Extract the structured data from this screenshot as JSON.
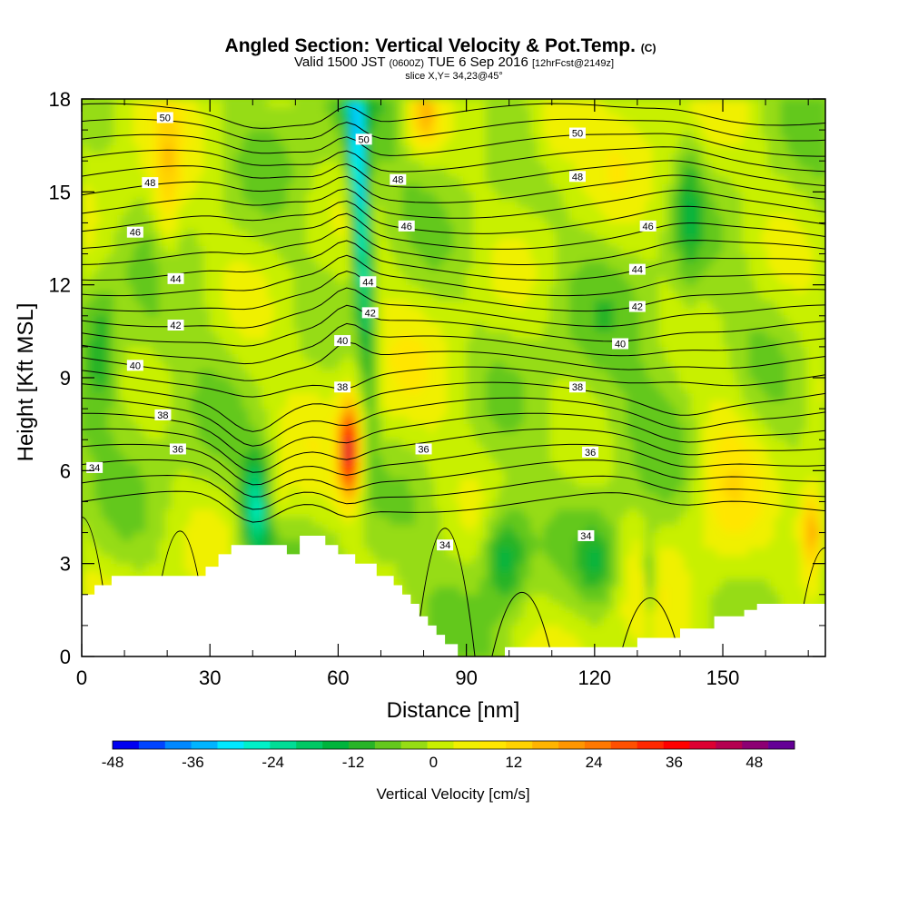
{
  "title": {
    "main": "Angled Section: Vertical Velocity & Pot.Temp.",
    "main_unit": "(C)",
    "valid_prefix": "Valid 1500 JST",
    "valid_zulu": "(0600Z)",
    "valid_date": "TUE 6 Sep 2016",
    "valid_fcst": "[12hrFcst@2149z]",
    "slice": "slice X,Y= 34,23@45°"
  },
  "chart_data": {
    "type": "heatmap",
    "xlabel": "Distance [nm]",
    "ylabel": "Height [Kft MSL]",
    "xlim": [
      0,
      174
    ],
    "ylim": [
      0,
      18
    ],
    "x_ticks": [
      "0",
      "30",
      "60",
      "90",
      "120",
      "150"
    ],
    "y_ticks": [
      "0",
      "3",
      "6",
      "9",
      "12",
      "15",
      "18"
    ],
    "colorbar": {
      "label": "Vertical Velocity [cm/s]",
      "min": -48,
      "max": 54,
      "step": 4,
      "tick_labels": [
        "-48",
        "-36",
        "-24",
        "-12",
        "0",
        "12",
        "24",
        "36",
        "48"
      ],
      "colors": [
        "#0000f0",
        "#0044ff",
        "#0088ff",
        "#00b4ff",
        "#00e8ff",
        "#00f0c8",
        "#00dc96",
        "#00c864",
        "#00b43c",
        "#28b428",
        "#64c81e",
        "#96dc14",
        "#c8f000",
        "#f0f000",
        "#ffe600",
        "#ffd200",
        "#ffb400",
        "#ff9600",
        "#ff7800",
        "#ff5000",
        "#ff2800",
        "#ff0000",
        "#dc0032",
        "#b40050",
        "#8c0073",
        "#640096"
      ]
    },
    "velocity_features": [
      {
        "x": 65,
        "z": 15,
        "w": -30
      },
      {
        "x": 64,
        "z": 12,
        "w": -22
      },
      {
        "x": 40,
        "z": 4.5,
        "w": -24
      },
      {
        "x": 62,
        "z": 6.5,
        "w": 38
      },
      {
        "x": 98,
        "z": 3.5,
        "w": -16
      },
      {
        "x": 120,
        "z": 3,
        "w": -12
      },
      {
        "x": 80,
        "z": 17.5,
        "w": 18
      },
      {
        "x": 170,
        "z": 4,
        "w": 20
      }
    ],
    "theta_levels": [
      34,
      36,
      38,
      40,
      42,
      44,
      46,
      48,
      50
    ],
    "contour_labels": [
      {
        "text": "50",
        "x": 19.5,
        "z": 17.4
      },
      {
        "text": "48",
        "x": 16,
        "z": 15.3
      },
      {
        "text": "46",
        "x": 12.5,
        "z": 13.7
      },
      {
        "text": "44",
        "x": 22,
        "z": 12.2
      },
      {
        "text": "42",
        "x": 22,
        "z": 10.7
      },
      {
        "text": "40",
        "x": 12.5,
        "z": 9.4
      },
      {
        "text": "38",
        "x": 19,
        "z": 7.8
      },
      {
        "text": "36",
        "x": 22.5,
        "z": 6.7
      },
      {
        "text": "34",
        "x": 3,
        "z": 6.1
      },
      {
        "text": "50",
        "x": 66,
        "z": 16.7
      },
      {
        "text": "48",
        "x": 74,
        "z": 15.4
      },
      {
        "text": "46",
        "x": 76,
        "z": 13.9
      },
      {
        "text": "44",
        "x": 67,
        "z": 12.1
      },
      {
        "text": "42",
        "x": 67.5,
        "z": 11.1
      },
      {
        "text": "40",
        "x": 61,
        "z": 10.2
      },
      {
        "text": "38",
        "x": 61,
        "z": 8.7
      },
      {
        "text": "36",
        "x": 80,
        "z": 6.7
      },
      {
        "text": "34",
        "x": 85,
        "z": 3.6
      },
      {
        "text": "50",
        "x": 116,
        "z": 16.9
      },
      {
        "text": "48",
        "x": 116,
        "z": 15.5
      },
      {
        "text": "46",
        "x": 132.5,
        "z": 13.9
      },
      {
        "text": "44",
        "x": 130,
        "z": 12.5
      },
      {
        "text": "42",
        "x": 130,
        "z": 11.3
      },
      {
        "text": "40",
        "x": 126,
        "z": 10.1
      },
      {
        "text": "38",
        "x": 116,
        "z": 8.7
      },
      {
        "text": "36",
        "x": 119,
        "z": 6.6
      },
      {
        "text": "34",
        "x": 118,
        "z": 3.9
      }
    ],
    "terrain_steps": [
      [
        0,
        2.0
      ],
      [
        3,
        2.3
      ],
      [
        7,
        2.6
      ],
      [
        29,
        2.9
      ],
      [
        32,
        3.3
      ],
      [
        35,
        3.6
      ],
      [
        48,
        3.3
      ],
      [
        51,
        3.9
      ],
      [
        57,
        3.6
      ],
      [
        60,
        3.3
      ],
      [
        64,
        3.0
      ],
      [
        69,
        2.6
      ],
      [
        73,
        2.3
      ],
      [
        75,
        2.0
      ],
      [
        77,
        1.7
      ],
      [
        79,
        1.3
      ],
      [
        81,
        1.0
      ],
      [
        83,
        0.7
      ],
      [
        85,
        0.4
      ],
      [
        88,
        0.0
      ],
      [
        99,
        0.3
      ],
      [
        130,
        0.6
      ],
      [
        140,
        0.9
      ],
      [
        148,
        1.3
      ],
      [
        155,
        1.5
      ],
      [
        158,
        1.7
      ],
      [
        174,
        1.7
      ]
    ]
  }
}
